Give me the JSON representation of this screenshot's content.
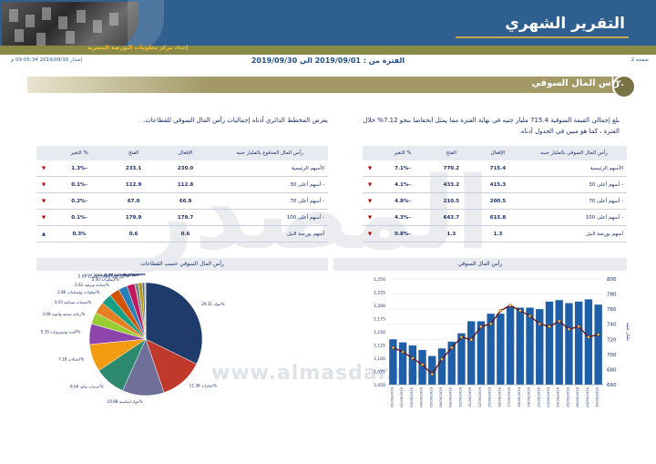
{
  "header": {
    "title": "التقرير الشهري",
    "prepared_by": "إعداد مركز معلومات البورصة المصرية"
  },
  "subheader": {
    "page": "صفحة 2",
    "period": "الفترة من : 2019/09/01 الي 2019/09/30",
    "issued": "إصدار 2019/09/30 09:05:34 م"
  },
  "section": {
    "number": "٢.",
    "title": "رأس المال السوقي"
  },
  "text": {
    "para_right": "بلغ إجمالي القيمة السوقية 715.4 مليار جنيه في نهاية الفترة مما يمثل انخفاضا بنحو 7.12% خلال الفترة ، كما هو مبين في الجدول أدناه.",
    "para_left": "يعرض المخطط الدائري أدناه إجماليات رأس المال السوقي للقطاعات."
  },
  "table_right": {
    "headers": [
      "رأس المال السوقي بالمليار جنيه",
      "الإقفال",
      "الفتح",
      "% التغير"
    ],
    "rows": [
      {
        "name": "الأسهم الرئيسية",
        "close": "715.4",
        "open": "770.2",
        "change": "-7.1%",
        "dir": "▼"
      },
      {
        "name": "- أسهم أعلى 30",
        "close": "415.3",
        "open": "433.2",
        "change": "-4.1%",
        "dir": "▼"
      },
      {
        "name": "- أسهم أعلى 70",
        "close": "200.5",
        "open": "210.5",
        "change": "-4.8%",
        "dir": "▼"
      },
      {
        "name": "- أسهم أعلى 100",
        "close": "615.8",
        "open": "643.7",
        "change": "-4.3%",
        "dir": "▼"
      },
      {
        "name": "أسهم بورصة النيل",
        "close": "1.3",
        "open": "1.3",
        "change": "-0.8%",
        "dir": "▼"
      }
    ]
  },
  "table_left": {
    "headers": [
      "رأس المال المدفوع بالمليار جنيه",
      "الإقفال",
      "الفتح",
      "% التغير"
    ],
    "rows": [
      {
        "name": "الأسهم الرئيسية",
        "close": "230.0",
        "open": "233.1",
        "change": "-1.3%",
        "dir": "▼"
      },
      {
        "name": "- أسهم أعلى 30",
        "close": "112.8",
        "open": "112.9",
        "change": "-0.1%",
        "dir": "▼"
      },
      {
        "name": "- أسهم أعلى 70",
        "close": "66.9",
        "open": "67.0",
        "change": "-0.2%",
        "dir": "▼"
      },
      {
        "name": "- أسهم أعلى 100",
        "close": "179.7",
        "open": "179.9",
        "change": "-0.1%",
        "dir": "▼"
      },
      {
        "name": "أسهم بورصة النيل",
        "close": "0.6",
        "open": "0.6",
        "change": "0.3%",
        "dir": "▲"
      }
    ]
  },
  "chart_titles": {
    "right": "رأس المال السوقي",
    "left": "رأس المال السوقي حسب القطاعات"
  },
  "watermark": {
    "arabic": "المصدر",
    "url": "www.almasdar.com"
  },
  "colors": {
    "header_blue": "#2f5f8f",
    "bar_blue": "#1f5fa8",
    "line_red": "#6b0f0f"
  },
  "chart_data": [
    {
      "type": "bar",
      "title": "رأس المال السوقي",
      "ylabel": "مليار جنيه",
      "ylim_right": [
        660,
        800
      ],
      "ylim_left": [
        1050,
        1250
      ],
      "y_ticks_right": [
        "660",
        "680",
        "700",
        "720",
        "740",
        "760",
        "780",
        "800"
      ],
      "y_ticks_left": [
        "1,050",
        "1,075",
        "1,100",
        "1,125",
        "1,150",
        "1,175",
        "1,200",
        "1,225",
        "1,250"
      ],
      "categories": [
        "01/09/2019",
        "02/09/2019",
        "03/09/2019",
        "04/09/2019",
        "05/09/2019",
        "08/09/2019",
        "09/09/2019",
        "10/09/2019",
        "11/09/2019",
        "12/09/2019",
        "15/09/2019",
        "16/09/2019",
        "17/09/2019",
        "18/09/2019",
        "19/09/2019",
        "22/09/2019",
        "23/09/2019",
        "24/09/2019",
        "25/09/2019",
        "26/09/2019",
        "29/09/2019",
        "30/09/2019"
      ],
      "series": [
        {
          "type": "bar",
          "values": [
            720,
            716,
            712,
            706,
            698,
            708,
            717,
            728,
            744,
            744,
            754,
            754,
            764,
            762,
            762,
            760,
            770,
            772,
            768,
            770,
            773,
            766
          ]
        },
        {
          "type": "line",
          "values": [
            1120,
            1112,
            1100,
            1088,
            1070,
            1098,
            1120,
            1140,
            1135,
            1160,
            1165,
            1190,
            1200,
            1190,
            1180,
            1165,
            1160,
            1170,
            1155,
            1160,
            1140,
            1145
          ]
        }
      ]
    },
    {
      "type": "pie",
      "title": "رأس المال السوقي حسب القطاعات",
      "labels": [
        "بنوك",
        "عقارات",
        "مواد أساسية",
        "خدمات مالية",
        "اتصالات",
        "أغذية ومشروبات",
        "رعاية صحية وأدوية",
        "منتجات صناعية",
        "مقاولات وإنشاءات",
        "سياحة وترفيه",
        "كيماويات",
        "موزعون وتجارة التجزئة",
        "منتجات منزلية وشخصية",
        "موارد أساسية",
        "خدمات ومنتجات أخرى",
        "تجارة",
        "أخرى"
      ],
      "values": [
        29.31,
        11.36,
        10.88,
        8.04,
        7.18,
        5.35,
        3.06,
        3.03,
        2.8,
        2.61,
        2.3,
        2.03,
        1.01,
        0.96,
        0.62,
        0.19,
        0.12
      ]
    }
  ]
}
